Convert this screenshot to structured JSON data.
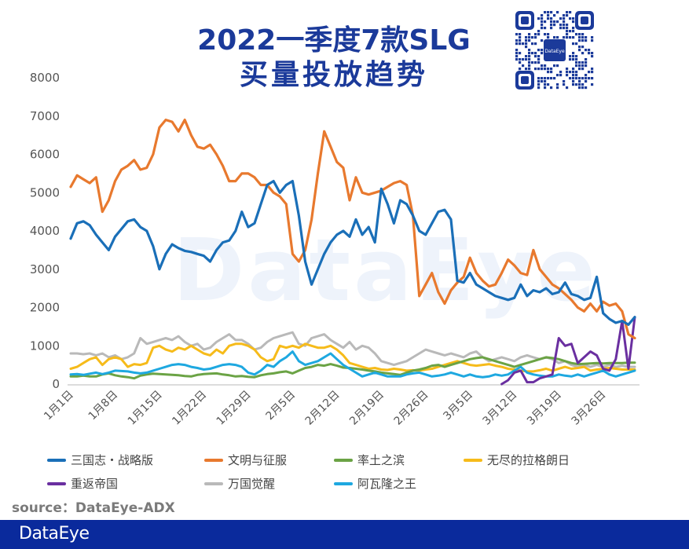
{
  "header": {
    "title_line1": "2022一季度7款SLG",
    "title_line2": "买量投放趋势",
    "qr_center_label": "DataEye"
  },
  "watermark": "DataEye",
  "source": "source：DataEye-ADX",
  "footer": {
    "brand": "DataEye"
  },
  "colors": {
    "title": "#1b3a9a",
    "footer_bg": "#0a2a9c"
  },
  "chart_data": {
    "type": "line",
    "title": "2022一季度7款SLG买量投放趋势",
    "xlabel": "",
    "ylabel": "",
    "ylim": [
      0,
      8000
    ],
    "yticks": [
      "0",
      "1000",
      "2000",
      "3000",
      "4000",
      "5000",
      "6000",
      "7000",
      "8000"
    ],
    "xtick_labels": [
      "1月1日",
      "1月8日",
      "1月15日",
      "1月22日",
      "1月29日",
      "2月5日",
      "2月12日",
      "2月19日",
      "2月26日",
      "3月5日",
      "3月12日",
      "3月19日",
      "3月26日"
    ],
    "xtick_step_days": 7,
    "num_days": 90,
    "grid": false,
    "legend_position": "bottom",
    "series": [
      {
        "name": "三国志・战略版",
        "color": "#1a6fb8",
        "values": [
          3800,
          4200,
          4250,
          4150,
          3900,
          3700,
          3500,
          3850,
          4050,
          4250,
          4300,
          4100,
          4000,
          3600,
          3000,
          3400,
          3650,
          3550,
          3480,
          3450,
          3400,
          3350,
          3200,
          3500,
          3700,
          3750,
          4000,
          4500,
          4100,
          4200,
          4700,
          5200,
          5300,
          5000,
          5200,
          5300,
          4400,
          3200,
          2600,
          3000,
          3400,
          3700,
          3900,
          4000,
          3850,
          4300,
          3900,
          4100,
          3700,
          5100,
          4700,
          4200,
          4800,
          4700,
          4400,
          4000,
          3900,
          4200,
          4500,
          4550,
          4300,
          2700,
          2650,
          2900,
          2600,
          2500,
          2400,
          2300,
          2250,
          2200,
          2250,
          2600,
          2300,
          2450,
          2400,
          2500,
          2350,
          2400,
          2650,
          2350,
          2300,
          2200,
          2250,
          2800,
          1850,
          1700,
          1600,
          1650,
          1550,
          1750
        ]
      },
      {
        "name": "文明与征服",
        "color": "#e8792e",
        "values": [
          5150,
          5450,
          5350,
          5250,
          5400,
          4500,
          4800,
          5300,
          5600,
          5700,
          5850,
          5600,
          5650,
          6000,
          6700,
          6900,
          6850,
          6600,
          6900,
          6500,
          6200,
          6150,
          6250,
          6000,
          5700,
          5300,
          5300,
          5500,
          5500,
          5400,
          5200,
          5200,
          5000,
          4900,
          4700,
          3400,
          3200,
          3500,
          4300,
          5500,
          6600,
          6200,
          5800,
          5650,
          4800,
          5400,
          5000,
          4950,
          5000,
          5050,
          5150,
          5250,
          5300,
          5200,
          4400,
          2300,
          2600,
          2900,
          2400,
          2100,
          2450,
          2650,
          2800,
          3300,
          2900,
          2700,
          2550,
          2600,
          2900,
          3250,
          3100,
          2900,
          2850,
          3500,
          3000,
          2800,
          2600,
          2500,
          2350,
          2200,
          2000,
          1900,
          2100,
          1900,
          2150,
          2050,
          2100,
          1900,
          1300,
          1200
        ]
      },
      {
        "name": "率土之滨",
        "color": "#6ba345",
        "values": [
          200,
          200,
          220,
          200,
          200,
          250,
          280,
          230,
          200,
          180,
          150,
          220,
          250,
          270,
          260,
          250,
          240,
          230,
          210,
          200,
          240,
          260,
          270,
          280,
          250,
          230,
          200,
          210,
          190,
          180,
          230,
          260,
          280,
          310,
          330,
          280,
          350,
          420,
          450,
          500,
          480,
          520,
          480,
          430,
          420,
          400,
          380,
          350,
          330,
          300,
          280,
          260,
          240,
          300,
          350,
          380,
          420,
          480,
          500,
          450,
          500,
          550,
          600,
          650,
          680,
          700,
          650,
          600,
          550,
          500,
          450,
          500,
          550,
          600,
          650,
          700,
          680,
          650,
          600,
          550,
          520,
          530,
          540,
          550,
          540,
          550,
          550,
          550,
          560,
          560
        ]
      },
      {
        "name": "无尽的拉格朗日",
        "color": "#f6bb1a",
        "values": [
          400,
          450,
          550,
          650,
          700,
          500,
          650,
          700,
          650,
          450,
          520,
          500,
          550,
          950,
          1000,
          900,
          850,
          950,
          900,
          1000,
          900,
          800,
          750,
          900,
          800,
          1000,
          1050,
          1050,
          1000,
          900,
          700,
          600,
          650,
          1000,
          950,
          1000,
          950,
          1050,
          1000,
          950,
          950,
          1000,
          900,
          750,
          550,
          500,
          450,
          400,
          420,
          380,
          370,
          400,
          380,
          350,
          360,
          350,
          380,
          400,
          450,
          500,
          550,
          600,
          550,
          500,
          480,
          500,
          520,
          480,
          450,
          400,
          380,
          350,
          330,
          330,
          360,
          400,
          350,
          400,
          450,
          400,
          420,
          450,
          350,
          380,
          400,
          420,
          400,
          380,
          380,
          380
        ]
      },
      {
        "name": "重返帝国",
        "color": "#6a2fa0",
        "values": [
          null,
          null,
          null,
          null,
          null,
          null,
          null,
          null,
          null,
          null,
          null,
          null,
          null,
          null,
          null,
          null,
          null,
          null,
          null,
          null,
          null,
          null,
          null,
          null,
          null,
          null,
          null,
          null,
          null,
          null,
          null,
          null,
          null,
          null,
          null,
          null,
          null,
          null,
          null,
          null,
          null,
          null,
          null,
          null,
          null,
          null,
          null,
          null,
          null,
          null,
          null,
          null,
          null,
          null,
          null,
          null,
          null,
          null,
          null,
          null,
          null,
          null,
          null,
          null,
          null,
          null,
          null,
          null,
          0,
          100,
          300,
          350,
          50,
          50,
          150,
          200,
          250,
          1200,
          1000,
          1050,
          550,
          700,
          850,
          750,
          400,
          350,
          650,
          1650,
          400,
          1750
        ]
      },
      {
        "name": "万国觉醒",
        "color": "#b9b9b9",
        "values": [
          800,
          800,
          780,
          800,
          750,
          800,
          700,
          750,
          650,
          700,
          800,
          1200,
          1050,
          1100,
          1150,
          1200,
          1150,
          1250,
          1100,
          1000,
          1050,
          900,
          950,
          1100,
          1200,
          1300,
          1150,
          1150,
          1050,
          900,
          950,
          1100,
          1200,
          1250,
          1300,
          1350,
          1050,
          1000,
          1200,
          1250,
          1300,
          1150,
          1050,
          950,
          1100,
          900,
          1000,
          950,
          800,
          600,
          550,
          500,
          550,
          600,
          700,
          800,
          900,
          850,
          800,
          750,
          800,
          750,
          700,
          800,
          850,
          700,
          600,
          650,
          700,
          650,
          600,
          700,
          750,
          700,
          650,
          700,
          650,
          550,
          600,
          500,
          450,
          500,
          450,
          500,
          450,
          500,
          450,
          480,
          450,
          450
        ]
      },
      {
        "name": "阿瓦隆之王",
        "color": "#1ea8e0",
        "values": [
          250,
          260,
          240,
          270,
          300,
          260,
          300,
          350,
          340,
          330,
          300,
          280,
          300,
          350,
          400,
          450,
          500,
          520,
          500,
          450,
          420,
          380,
          400,
          450,
          500,
          520,
          500,
          450,
          300,
          250,
          350,
          500,
          450,
          600,
          700,
          850,
          600,
          500,
          550,
          600,
          700,
          800,
          650,
          500,
          400,
          300,
          200,
          250,
          300,
          250,
          200,
          200,
          200,
          250,
          280,
          300,
          250,
          200,
          220,
          250,
          300,
          250,
          200,
          250,
          200,
          180,
          200,
          250,
          220,
          250,
          350,
          450,
          300,
          250,
          220,
          200,
          200,
          250,
          220,
          200,
          250,
          200,
          250,
          300,
          350,
          250,
          200,
          250,
          300,
          350
        ]
      }
    ]
  },
  "legend": {
    "items": [
      {
        "label": "三国志・战略版",
        "color": "#1a6fb8"
      },
      {
        "label": "文明与征服",
        "color": "#e8792e"
      },
      {
        "label": "率土之滨",
        "color": "#6ba345"
      },
      {
        "label": "无尽的拉格朗日",
        "color": "#f6bb1a"
      },
      {
        "label": "重返帝国",
        "color": "#6a2fa0"
      },
      {
        "label": "万国觉醒",
        "color": "#b9b9b9"
      },
      {
        "label": "阿瓦隆之王",
        "color": "#1ea8e0"
      }
    ]
  }
}
